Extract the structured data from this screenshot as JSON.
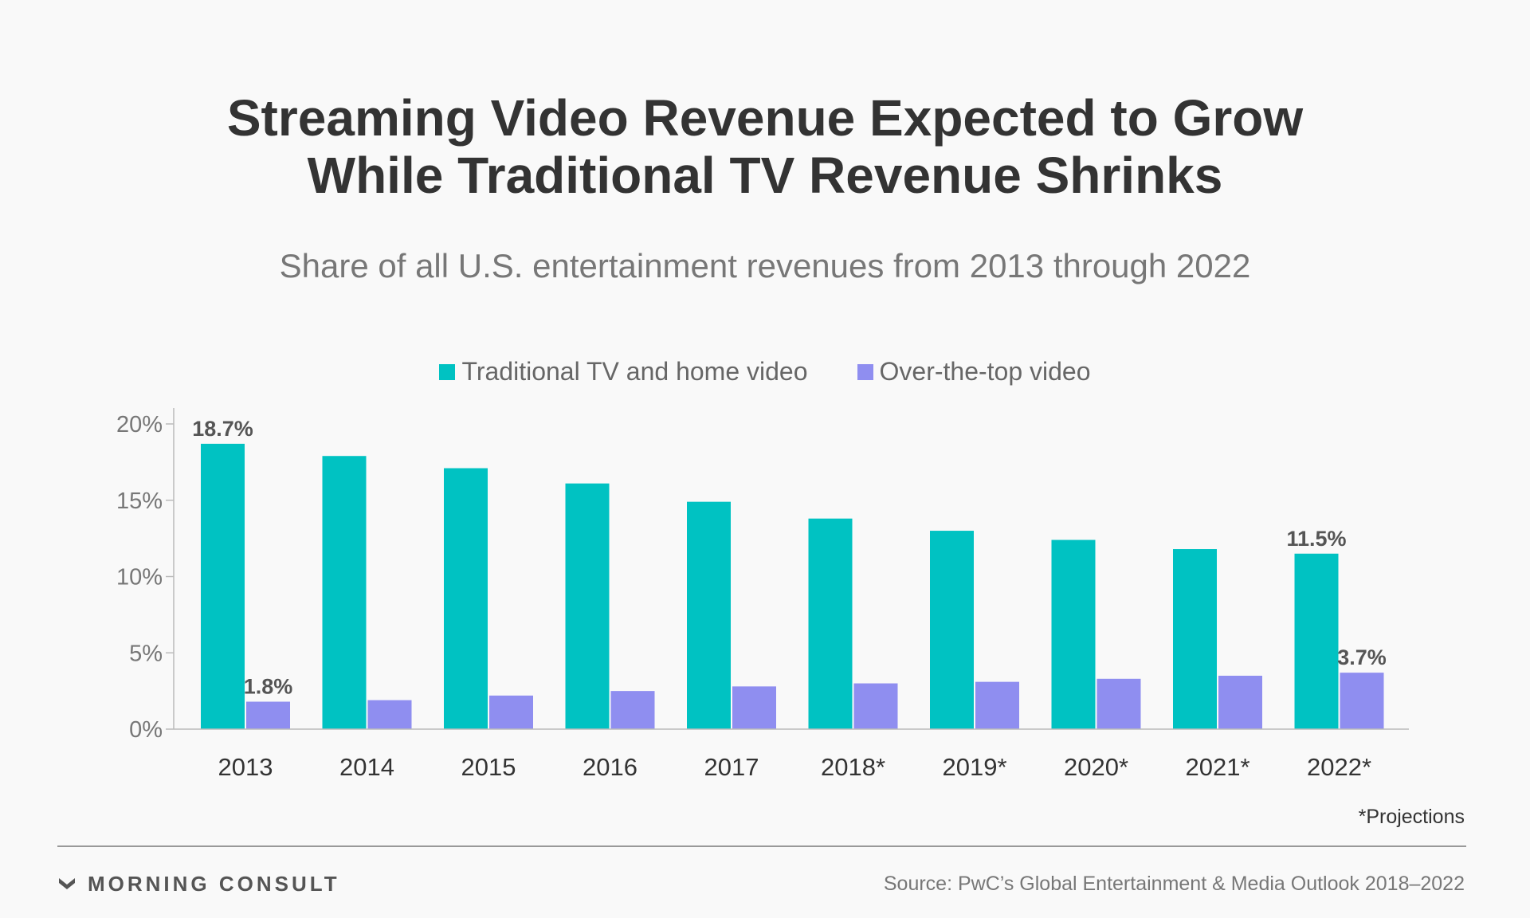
{
  "colors": {
    "traditional": "#00c2c2",
    "ott": "#8f8ef0",
    "text_dark": "#333333",
    "text_muted": "#777777",
    "background": "#f9f9f9"
  },
  "header": {
    "title_line1": "Streaming Video Revenue Expected to Grow",
    "title_line2": "While Traditional TV Revenue Shrinks",
    "subtitle": "Share of all U.S. entertainment revenues from 2013 through 2022"
  },
  "chart_data": {
    "type": "bar",
    "title": "Streaming Video Revenue Expected to Grow While Traditional TV Revenue Shrinks",
    "subtitle": "Share of all U.S. entertainment revenues from 2013 through 2022",
    "categories": [
      "2013",
      "2014",
      "2015",
      "2016",
      "2017",
      "2018*",
      "2019*",
      "2020*",
      "2021*",
      "2022*"
    ],
    "series": [
      {
        "name": "Traditional TV and home video",
        "color": "#00c2c2",
        "values": [
          18.7,
          17.9,
          17.1,
          16.1,
          14.9,
          13.8,
          13.0,
          12.4,
          11.8,
          11.5
        ]
      },
      {
        "name": "Over-the-top video",
        "color": "#8f8ef0",
        "values": [
          1.8,
          1.9,
          2.2,
          2.5,
          2.8,
          3.0,
          3.1,
          3.3,
          3.5,
          3.7
        ]
      }
    ],
    "data_labels": [
      {
        "series": 0,
        "index": 0,
        "text": "18.7%"
      },
      {
        "series": 1,
        "index": 0,
        "text": "1.8%"
      },
      {
        "series": 0,
        "index": 9,
        "text": "11.5%"
      },
      {
        "series": 1,
        "index": 9,
        "text": "3.7%"
      }
    ],
    "y_ticks": [
      {
        "value": 0,
        "label": "0%"
      },
      {
        "value": 5,
        "label": "5%"
      },
      {
        "value": 10,
        "label": "10%"
      },
      {
        "value": 15,
        "label": "15%"
      },
      {
        "value": 20,
        "label": "20%"
      }
    ],
    "ylim": [
      0,
      20
    ],
    "xlabel": "",
    "ylabel": "",
    "grid": false,
    "legend": "top-center"
  },
  "footnote": "*Projections",
  "footer": {
    "brand": "MORNING CONSULT",
    "source": "Source: PwC’s Global Entertainment & Media Outlook 2018–2022"
  }
}
